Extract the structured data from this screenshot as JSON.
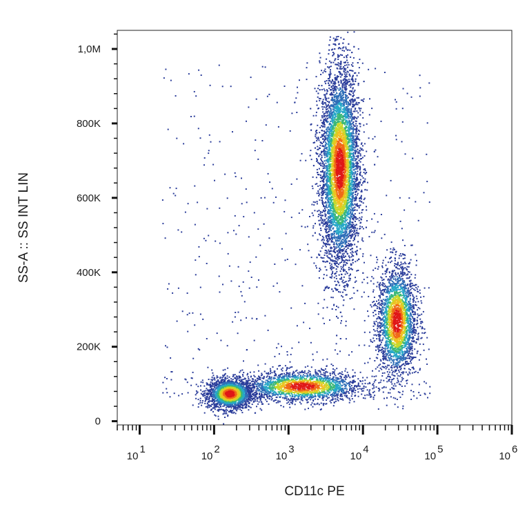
{
  "chart_data": {
    "type": "scatter",
    "title": "",
    "xlabel": "CD11c PE",
    "ylabel": "SS-A :: SS INT LIN",
    "x_scale": "log",
    "x_range": [
      5,
      1000000
    ],
    "y_range": [
      -10000,
      1050000
    ],
    "x_ticks": [
      {
        "value": 10,
        "base": "10",
        "exp": "1"
      },
      {
        "value": 100,
        "base": "10",
        "exp": "2"
      },
      {
        "value": 1000,
        "base": "10",
        "exp": "3"
      },
      {
        "value": 10000,
        "base": "10",
        "exp": "4"
      },
      {
        "value": 100000,
        "base": "10",
        "exp": "5"
      },
      {
        "value": 1000000,
        "base": "10",
        "exp": "6"
      }
    ],
    "y_ticks": [
      {
        "value": 0,
        "label": "0"
      },
      {
        "value": 200000,
        "label": "200K"
      },
      {
        "value": 400000,
        "label": "400K"
      },
      {
        "value": 600000,
        "label": "600K"
      },
      {
        "value": 800000,
        "label": "800K"
      },
      {
        "value": 1000000,
        "label": "1,0M"
      }
    ],
    "grid": false,
    "legend": "none",
    "density_colormap": [
      "#2a3c9a",
      "#2f6fb8",
      "#27a8c8",
      "#3cb878",
      "#c8d82a",
      "#f0c020",
      "#f06a18",
      "#e01818"
    ],
    "populations": [
      {
        "center_x": 160,
        "center_y": 75000,
        "spread_log10_x": 0.15,
        "spread_y": 20000,
        "count": 2200
      },
      {
        "center_x": 1500,
        "center_y": 95000,
        "spread_log10_x": 0.4,
        "spread_y": 20000,
        "count": 2000
      },
      {
        "center_x": 4800,
        "center_y": 680000,
        "spread_log10_x": 0.13,
        "spread_y": 135000,
        "count": 6500
      },
      {
        "center_x": 28000,
        "center_y": 270000,
        "spread_log10_x": 0.13,
        "spread_y": 75000,
        "count": 2600
      }
    ]
  }
}
